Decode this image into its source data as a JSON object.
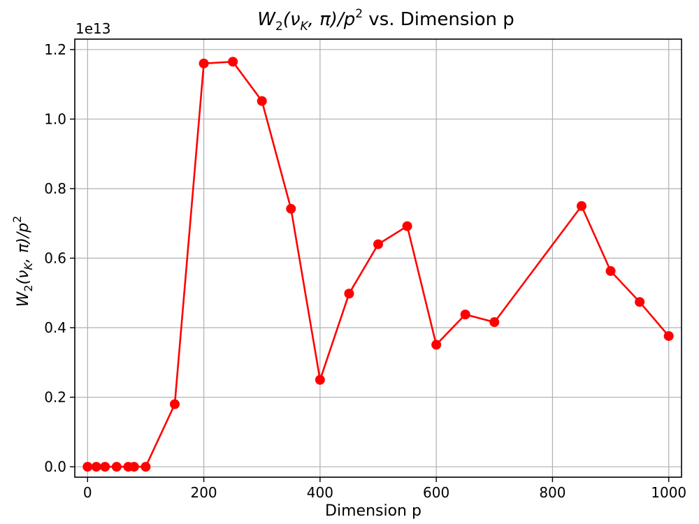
{
  "chart_data": {
    "type": "line",
    "title_main": "W",
    "title_sub": "2",
    "title_mid": "(ν",
    "title_sub2": "K",
    "title_tail": ", π)/p",
    "title_sup": "2",
    "title_end": " vs. Dimension p",
    "xlabel": "Dimension p",
    "ylabel_main": "W",
    "ylabel_sub": "2",
    "ylabel_mid": "(ν",
    "ylabel_sub2": "K",
    "ylabel_tail": ", π)/p",
    "ylabel_sup": "2",
    "y_offset_label": "1e13",
    "xlim": [
      -22,
      1022
    ],
    "ylim": [
      -0.03,
      1.23
    ],
    "y_scale_factor": 10000000000000.0,
    "xticks": [
      0,
      200,
      400,
      600,
      800,
      1000
    ],
    "xtick_labels": [
      "0",
      "200",
      "400",
      "600",
      "800",
      "1000"
    ],
    "yticks": [
      0.0,
      0.2,
      0.4,
      0.6,
      0.8,
      1.0,
      1.2
    ],
    "ytick_labels": [
      "0.0",
      "0.2",
      "0.4",
      "0.6",
      "0.8",
      "1.0",
      "1.2"
    ],
    "grid": true,
    "series": [
      {
        "color": "#ff0000",
        "marker": "circle",
        "x": [
          0,
          15,
          30,
          50,
          70,
          80,
          100,
          150,
          200,
          250,
          300,
          350,
          400,
          450,
          500,
          550,
          600,
          650,
          700,
          850,
          900,
          950,
          1000
        ],
        "y": [
          0.0,
          0.0,
          0.0,
          0.0,
          0.0,
          0.0,
          0.0,
          0.18,
          1.16,
          1.165,
          1.052,
          0.742,
          0.25,
          0.498,
          0.64,
          0.692,
          0.351,
          0.438,
          0.416,
          0.75,
          0.563,
          0.474,
          0.376
        ]
      }
    ]
  }
}
